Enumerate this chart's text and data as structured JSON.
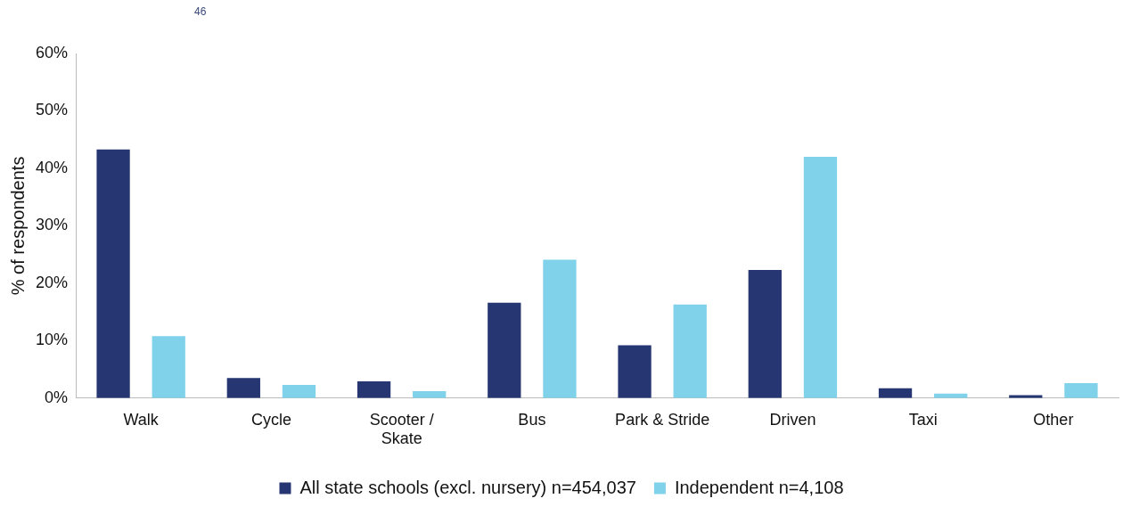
{
  "chart_data": {
    "type": "bar",
    "ylabel": "% of respondents",
    "annotations": [
      "46"
    ],
    "categories": [
      "Walk",
      "Cycle",
      "Scooter / Skate",
      "Bus",
      "Park & Stride",
      "Driven",
      "Taxi",
      "Other"
    ],
    "series": [
      {
        "name": "All state schools (excl. nursery) n=454,037",
        "color": "#253672",
        "values": [
          43.3,
          3.5,
          2.9,
          16.6,
          9.2,
          22.3,
          1.7,
          0.5
        ]
      },
      {
        "name": "Independent n=4,108",
        "color": "#7fd2ea",
        "values": [
          10.8,
          2.3,
          1.2,
          24.1,
          16.3,
          42.0,
          0.8,
          2.6
        ]
      }
    ],
    "ylim": [
      0,
      60
    ],
    "yticks": [
      {
        "value": 0,
        "label": "0%"
      },
      {
        "value": 10,
        "label": "10%"
      },
      {
        "value": 20,
        "label": "20%"
      },
      {
        "value": 30,
        "label": "30%"
      },
      {
        "value": 40,
        "label": "40%"
      },
      {
        "value": 50,
        "label": "50%"
      },
      {
        "value": 60,
        "label": "60%"
      }
    ],
    "grid": false,
    "legend": "bottom"
  }
}
